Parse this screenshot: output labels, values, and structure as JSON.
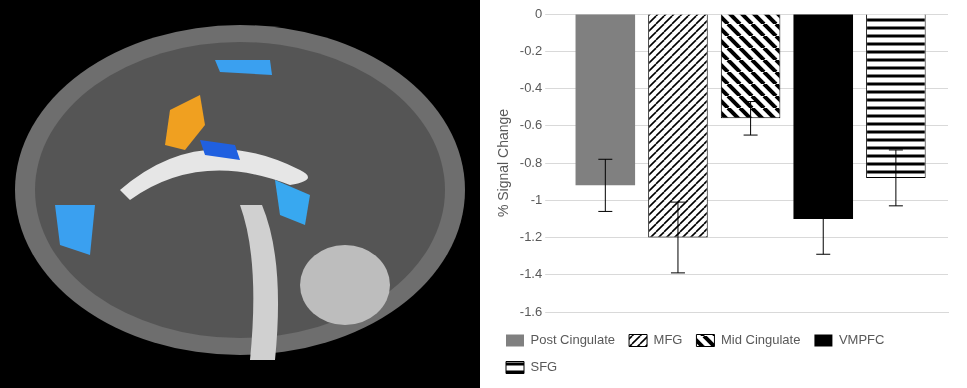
{
  "chart_data": {
    "type": "bar",
    "y_label": "% Signal Change",
    "categories": [
      null
    ],
    "series": [
      {
        "name": "Post Cingulate",
        "color": "#808080",
        "values": [
          -0.92
        ],
        "errors": [
          0.14
        ]
      },
      {
        "name": "MFG",
        "color": "#000000",
        "values": [
          -1.2
        ],
        "errors": [
          0.19
        ]
      },
      {
        "name": "Mid Cingulate",
        "color": "#000000",
        "values": [
          -0.56
        ],
        "errors": [
          0.09
        ]
      },
      {
        "name": "VMPFC",
        "color": "#000000",
        "values": [
          -1.1
        ],
        "errors": [
          0.19
        ]
      },
      {
        "name": "SFG",
        "color": "#000000",
        "values": [
          -0.88
        ],
        "errors": [
          0.15
        ]
      }
    ],
    "ylim": [
      -1.6,
      0
    ],
    "yticks": [
      -1.6,
      -1.4,
      -1.2,
      -1,
      -0.8,
      -0.6,
      -0.4,
      -0.2,
      0
    ],
    "grid": true,
    "legend": "bottom",
    "tick_labels": "y"
  }
}
